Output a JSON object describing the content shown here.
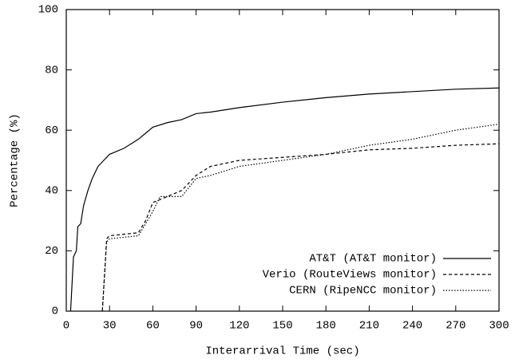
{
  "chart_data": {
    "type": "line",
    "x_label": "Interarrival Time (sec)",
    "y_label": "Percentage (%)",
    "xlim": [
      0,
      300
    ],
    "xticks": [
      0,
      30,
      60,
      90,
      120,
      150,
      180,
      210,
      240,
      270,
      300
    ],
    "ylim": [
      0,
      100
    ],
    "yticks": [
      0,
      20,
      40,
      60,
      80,
      100
    ],
    "legend": "lower-right",
    "series": [
      {
        "name": "AT&T (AT&T monitor)",
        "color": "#000000",
        "line_style": "solid",
        "x": [
          3,
          5,
          7,
          8,
          10,
          12,
          15,
          18,
          22,
          26,
          30,
          40,
          50,
          55,
          60,
          70,
          80,
          90,
          100,
          120,
          150,
          180,
          210,
          240,
          270,
          300
        ],
        "values": [
          0,
          18,
          20,
          28,
          29,
          35,
          40,
          44,
          48,
          50,
          52,
          54,
          57,
          59,
          61,
          62.5,
          63.5,
          65.5,
          66,
          67.5,
          69.3,
          70.8,
          72,
          72.8,
          73.6,
          74
        ]
      },
      {
        "name": "Verio (RouteViews monitor)",
        "color": "#000000",
        "line_style": "dashed",
        "x": [
          25,
          28,
          30,
          40,
          50,
          55,
          60,
          70,
          80,
          90,
          100,
          120,
          150,
          180,
          210,
          240,
          270,
          300
        ],
        "values": [
          0,
          24,
          25,
          25.5,
          26,
          30,
          36,
          38,
          40,
          45,
          48,
          50,
          51,
          52,
          53.5,
          54,
          55,
          55.5
        ]
      },
      {
        "name": "CERN (RipeNCC monitor)",
        "color": "#000000",
        "line_style": "dotted",
        "x": [
          25,
          28,
          30,
          50,
          55,
          60,
          65,
          80,
          90,
          100,
          120,
          150,
          180,
          200,
          210,
          240,
          270,
          300
        ],
        "values": [
          0,
          23,
          24,
          25,
          29,
          33,
          38,
          38,
          44,
          45,
          48,
          50,
          52,
          54,
          55,
          57,
          60,
          62
        ]
      }
    ]
  }
}
